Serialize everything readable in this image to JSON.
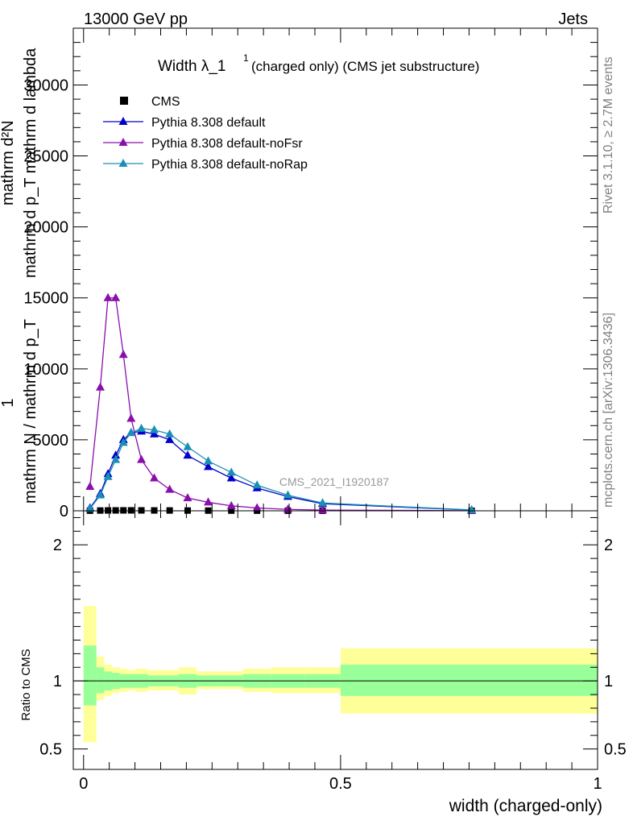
{
  "header": {
    "left": "13000 GeV pp",
    "right": "Jets"
  },
  "side_labels": {
    "rivet": "Rivet 3.1.10, ≥ 2.7M events",
    "mcplots": "mcplots.cern.ch [arXiv:1306.3436]"
  },
  "watermark": "CMS_2021_I1920187",
  "colors": {
    "cms": "#000000",
    "default": "#0000cc",
    "noFsr": "#8a0eae",
    "noRap": "#1a8fb5",
    "band_inner": "#99ff99",
    "band_outer": "#ffff99"
  },
  "chart_data": [
    {
      "type": "line",
      "title_main": "Width λ_1",
      "title_sup": "1",
      "title_rest": "(charged only) (CMS jet substructure)",
      "ylabel_numerator": "mathrm d²N",
      "ylabel_denominator": "mathrm d p_T mathrm d lambda",
      "ylabel_prefix_num": "1",
      "ylabel_prefix_den": "mathrm N / mathrm d p_T",
      "xlim": [
        -0.02,
        1.0
      ],
      "ylim": [
        0,
        34000
      ],
      "yticks": [
        0,
        5000,
        10000,
        15000,
        20000,
        25000,
        30000
      ],
      "ytick_labels": [
        "0",
        "5000",
        "10000",
        "15000",
        "20000",
        "25000",
        "30000"
      ],
      "legend_placement": "top-left",
      "series": [
        {
          "name": "CMS",
          "marker": "square",
          "color_key": "cms",
          "x": [
            0.0125,
            0.0325,
            0.0475,
            0.0625,
            0.0775,
            0.0925,
            0.1125,
            0.1375,
            0.1675,
            0.2025,
            0.2425,
            0.2875,
            0.3375,
            0.3975,
            0.465,
            0.755
          ],
          "y": [
            10,
            20,
            25,
            28,
            30,
            30,
            28,
            25,
            22,
            18,
            15,
            12,
            9,
            6,
            4,
            1
          ]
        },
        {
          "name": "Pythia 8.308 default",
          "marker": "triangle",
          "color_key": "default",
          "x": [
            0.0125,
            0.0325,
            0.0475,
            0.0625,
            0.0775,
            0.0925,
            0.1125,
            0.1375,
            0.1675,
            0.2025,
            0.2425,
            0.2875,
            0.3375,
            0.3975,
            0.465,
            0.755
          ],
          "y": [
            200,
            1200,
            2600,
            3900,
            5000,
            5500,
            5600,
            5400,
            5000,
            3900,
            3100,
            2300,
            1600,
            1000,
            500,
            50
          ]
        },
        {
          "name": "Pythia 8.308 default-noFsr",
          "marker": "triangle",
          "color_key": "noFsr",
          "x": [
            0.0125,
            0.0325,
            0.0475,
            0.0625,
            0.0775,
            0.0925,
            0.1125,
            0.1375,
            0.1675,
            0.2025,
            0.2425,
            0.2875,
            0.3375,
            0.3975,
            0.465,
            0.755
          ],
          "y": [
            1700,
            8700,
            15000,
            15000,
            11000,
            6500,
            3600,
            2300,
            1500,
            900,
            600,
            350,
            200,
            100,
            50,
            5
          ]
        },
        {
          "name": "Pythia 8.308 default-noRap",
          "marker": "triangle",
          "color_key": "noRap",
          "x": [
            0.0125,
            0.0325,
            0.0475,
            0.0625,
            0.0775,
            0.0925,
            0.1125,
            0.1375,
            0.1675,
            0.2025,
            0.2425,
            0.2875,
            0.3375,
            0.3975,
            0.465,
            0.755
          ],
          "y": [
            150,
            1100,
            2400,
            3600,
            4800,
            5500,
            5800,
            5700,
            5400,
            4500,
            3500,
            2700,
            1800,
            1100,
            550,
            60
          ]
        }
      ]
    },
    {
      "type": "area",
      "ylabel": "Ratio to CMS",
      "xlabel": "width (charged-only)",
      "xlim": [
        -0.02,
        1.0
      ],
      "ylim": [
        0.35,
        2.25
      ],
      "yticks": [
        0.5,
        1,
        2
      ],
      "ytick_labels": [
        "0.5",
        "1",
        "2"
      ],
      "xticks": [
        0,
        0.5,
        1
      ],
      "xtick_labels": [
        "0",
        "0.5",
        "1"
      ],
      "reference_line": 1,
      "bins": [
        {
          "lo": 0.0,
          "hi": 0.025,
          "inner": [
            0.82,
            1.26
          ],
          "outer": [
            0.55,
            1.55
          ]
        },
        {
          "lo": 0.025,
          "hi": 0.04,
          "inner": [
            0.91,
            1.1
          ],
          "outer": [
            0.86,
            1.18
          ]
        },
        {
          "lo": 0.04,
          "hi": 0.055,
          "inner": [
            0.93,
            1.07
          ],
          "outer": [
            0.89,
            1.12
          ]
        },
        {
          "lo": 0.055,
          "hi": 0.07,
          "inner": [
            0.94,
            1.06
          ],
          "outer": [
            0.91,
            1.1
          ]
        },
        {
          "lo": 0.07,
          "hi": 0.085,
          "inner": [
            0.95,
            1.05
          ],
          "outer": [
            0.92,
            1.09
          ]
        },
        {
          "lo": 0.085,
          "hi": 0.1,
          "inner": [
            0.95,
            1.05
          ],
          "outer": [
            0.93,
            1.08
          ]
        },
        {
          "lo": 0.1,
          "hi": 0.125,
          "inner": [
            0.95,
            1.05
          ],
          "outer": [
            0.92,
            1.09
          ]
        },
        {
          "lo": 0.125,
          "hi": 0.15,
          "inner": [
            0.96,
            1.04
          ],
          "outer": [
            0.93,
            1.08
          ]
        },
        {
          "lo": 0.15,
          "hi": 0.185,
          "inner": [
            0.96,
            1.04
          ],
          "outer": [
            0.93,
            1.08
          ]
        },
        {
          "lo": 0.185,
          "hi": 0.22,
          "inner": [
            0.95,
            1.05
          ],
          "outer": [
            0.9,
            1.1
          ]
        },
        {
          "lo": 0.22,
          "hi": 0.265,
          "inner": [
            0.96,
            1.04
          ],
          "outer": [
            0.94,
            1.07
          ]
        },
        {
          "lo": 0.265,
          "hi": 0.31,
          "inner": [
            0.96,
            1.04
          ],
          "outer": [
            0.94,
            1.07
          ]
        },
        {
          "lo": 0.31,
          "hi": 0.365,
          "inner": [
            0.95,
            1.05
          ],
          "outer": [
            0.92,
            1.09
          ]
        },
        {
          "lo": 0.365,
          "hi": 0.43,
          "inner": [
            0.95,
            1.05
          ],
          "outer": [
            0.91,
            1.1
          ]
        },
        {
          "lo": 0.43,
          "hi": 0.5,
          "inner": [
            0.95,
            1.05
          ],
          "outer": [
            0.91,
            1.1
          ]
        },
        {
          "lo": 0.5,
          "hi": 1.0,
          "inner": [
            0.89,
            1.12
          ],
          "outer": [
            0.76,
            1.24
          ]
        }
      ]
    }
  ]
}
